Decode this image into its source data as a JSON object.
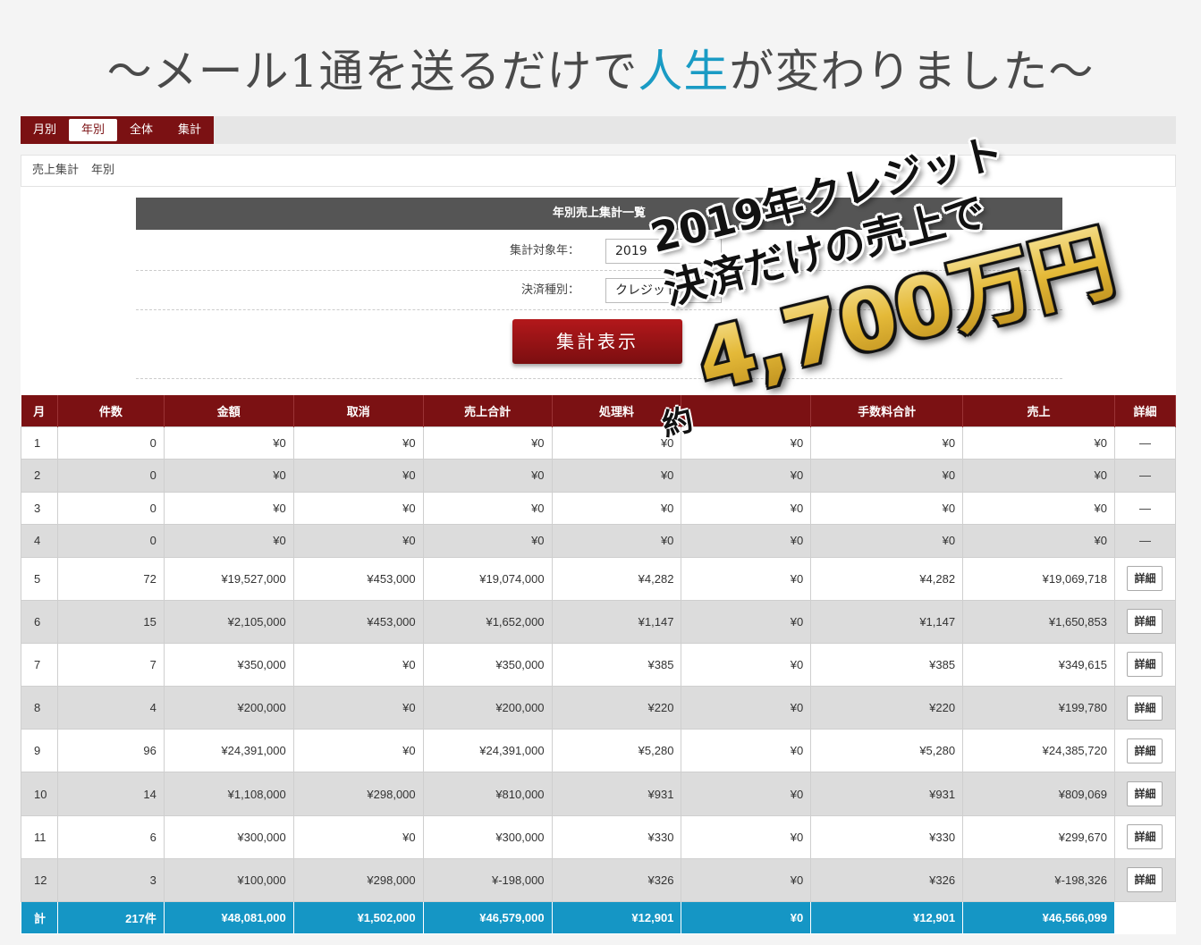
{
  "headline": {
    "prefix": "～メール1通を送るだけで",
    "accent": "人生",
    "suffix": "が変わりました～"
  },
  "tabs": [
    {
      "label": "月別",
      "active": false
    },
    {
      "label": "年別",
      "active": true
    },
    {
      "label": "全体",
      "active": false
    },
    {
      "label": "集計",
      "active": false
    }
  ],
  "breadcrumb": {
    "part1": "売上集計",
    "part2": "年別"
  },
  "panel": {
    "title": "年別売上集計一覧",
    "year_label": "集計対象年：",
    "year_value": "2019",
    "type_label": "決済種別：",
    "type_value": "クレジット",
    "submit_label": "集計表示"
  },
  "table": {
    "headers": [
      "月",
      "件数",
      "金額",
      "取消",
      "売上合計",
      "処理料",
      "",
      "手数料合計",
      "売上",
      "詳細"
    ],
    "rows": [
      [
        "1",
        "0",
        "¥0",
        "¥0",
        "¥0",
        "¥0",
        "¥0",
        "¥0",
        "¥0",
        "—"
      ],
      [
        "2",
        "0",
        "¥0",
        "¥0",
        "¥0",
        "¥0",
        "¥0",
        "¥0",
        "¥0",
        "—"
      ],
      [
        "3",
        "0",
        "¥0",
        "¥0",
        "¥0",
        "¥0",
        "¥0",
        "¥0",
        "¥0",
        "—"
      ],
      [
        "4",
        "0",
        "¥0",
        "¥0",
        "¥0",
        "¥0",
        "¥0",
        "¥0",
        "¥0",
        "—"
      ],
      [
        "5",
        "72",
        "¥19,527,000",
        "¥453,000",
        "¥19,074,000",
        "¥4,282",
        "¥0",
        "¥4,282",
        "¥19,069,718",
        "詳細"
      ],
      [
        "6",
        "15",
        "¥2,105,000",
        "¥453,000",
        "¥1,652,000",
        "¥1,147",
        "¥0",
        "¥1,147",
        "¥1,650,853",
        "詳細"
      ],
      [
        "7",
        "7",
        "¥350,000",
        "¥0",
        "¥350,000",
        "¥385",
        "¥0",
        "¥385",
        "¥349,615",
        "詳細"
      ],
      [
        "8",
        "4",
        "¥200,000",
        "¥0",
        "¥200,000",
        "¥220",
        "¥0",
        "¥220",
        "¥199,780",
        "詳細"
      ],
      [
        "9",
        "96",
        "¥24,391,000",
        "¥0",
        "¥24,391,000",
        "¥5,280",
        "¥0",
        "¥5,280",
        "¥24,385,720",
        "詳細"
      ],
      [
        "10",
        "14",
        "¥1,108,000",
        "¥298,000",
        "¥810,000",
        "¥931",
        "¥0",
        "¥931",
        "¥809,069",
        "詳細"
      ],
      [
        "11",
        "6",
        "¥300,000",
        "¥0",
        "¥300,000",
        "¥330",
        "¥0",
        "¥330",
        "¥299,670",
        "詳細"
      ],
      [
        "12",
        "3",
        "¥100,000",
        "¥298,000",
        "¥-198,000",
        "¥326",
        "¥0",
        "¥326",
        "¥-198,326",
        "詳細"
      ]
    ],
    "total": [
      "計",
      "217件",
      "¥48,081,000",
      "¥1,502,000",
      "¥46,579,000",
      "¥12,901",
      "¥0",
      "¥12,901",
      "¥46,566,099"
    ]
  },
  "overlay": {
    "line1": "2019年クレジット",
    "line2": "決済だけの売上で",
    "yaku": "約",
    "amount": "4,700万円"
  }
}
